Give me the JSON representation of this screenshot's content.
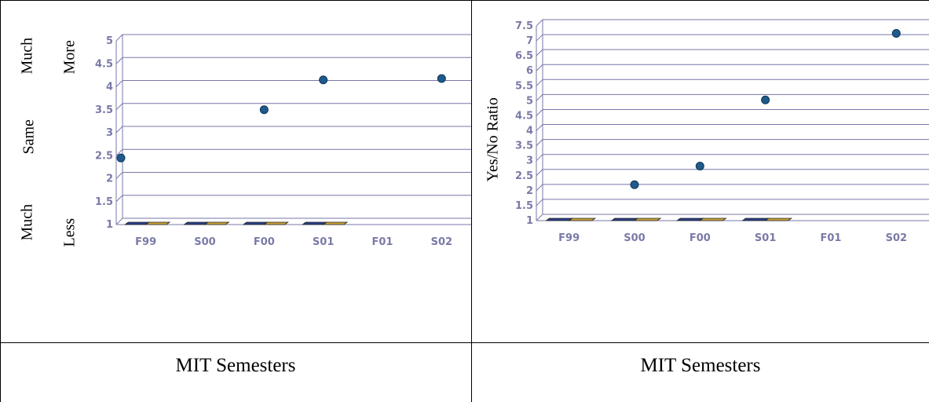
{
  "captions": {
    "left": "MIT Semesters",
    "right": "MIT Semesters"
  },
  "left_ylabels": {
    "much_more_1": "Much",
    "much_more_2": "More",
    "same": "Same",
    "much_less_1": "Much",
    "much_less_2": "Less"
  },
  "right_ylabel": "Yes/No Ratio",
  "colors": {
    "grid": "#7777aa",
    "point": "#1f5a8c",
    "bar_a": "#2b3f8a",
    "bar_b": "#c9a23a",
    "axis_text": "#7a7aa8"
  },
  "chart_data": [
    {
      "type": "scatter",
      "categories": [
        "F99",
        "S00",
        "F00",
        "S01",
        "F01",
        "S02"
      ],
      "ylim": [
        1,
        5
      ],
      "yticks": [
        "1",
        "1.5",
        "2",
        "2.5",
        "3",
        "3.5",
        "4",
        "4.5",
        "5"
      ],
      "points": [
        {
          "x": "F99",
          "y": 2.45
        },
        {
          "x": "F00",
          "y": 3.5
        },
        {
          "x": "S01",
          "y": 4.15
        },
        {
          "x": "S02",
          "y": 4.18
        }
      ],
      "grid": true
    },
    {
      "type": "scatter",
      "categories": [
        "F99",
        "S00",
        "F00",
        "S01",
        "F01",
        "S02"
      ],
      "ylim": [
        1,
        7.5
      ],
      "yticks": [
        "1",
        "1.5",
        "2",
        "2.5",
        "3",
        "3.5",
        "4",
        "4.5",
        "5",
        "5.5",
        "6",
        "6.5",
        "7",
        "7.5"
      ],
      "ylabel": "Yes/No Ratio",
      "points": [
        {
          "x": "S00",
          "y": 2.2
        },
        {
          "x": "F00",
          "y": 2.82
        },
        {
          "x": "S01",
          "y": 5.03
        },
        {
          "x": "S02",
          "y": 7.25
        }
      ],
      "grid": true
    }
  ]
}
